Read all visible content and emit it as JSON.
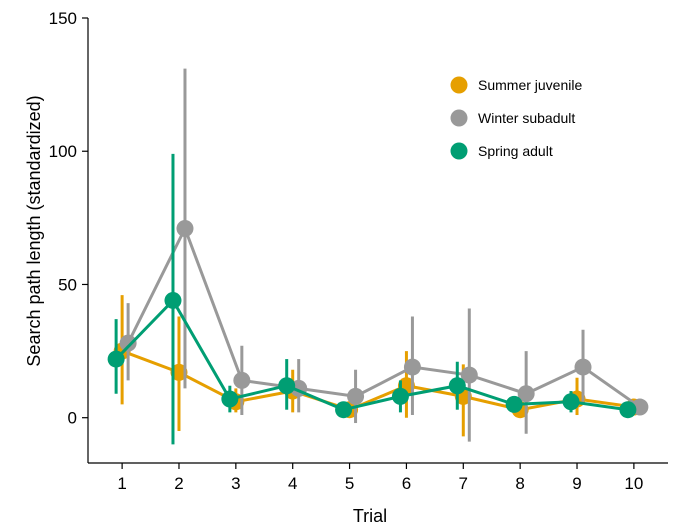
{
  "chart_data": {
    "type": "line",
    "title": "",
    "xlabel": "Trial",
    "ylabel": "Search path length (standardized)",
    "x": [
      1,
      2,
      3,
      4,
      5,
      6,
      7,
      8,
      9,
      10
    ],
    "xlim": [
      0.4,
      10.6
    ],
    "ylim": [
      -17,
      150
    ],
    "y_ticks": [
      0,
      50,
      100,
      150
    ],
    "legend_position": "top-right",
    "grid": false,
    "error_bars": true,
    "series": [
      {
        "name": "Summer juvenile",
        "color": "#E69F00",
        "values": [
          25,
          17,
          6,
          10,
          3,
          12,
          8,
          3,
          7,
          4
        ],
        "lower": [
          5,
          -5,
          2,
          2,
          1,
          0,
          -7,
          1,
          1,
          2
        ],
        "upper": [
          46,
          38,
          11,
          18,
          5,
          25,
          20,
          5,
          15,
          6
        ]
      },
      {
        "name": "Winter subadult",
        "color": "#999999",
        "values": [
          28,
          71,
          14,
          11,
          8,
          19,
          16,
          9,
          19,
          4
        ],
        "lower": [
          14,
          11,
          1,
          2,
          -2,
          1,
          -9,
          -6,
          6,
          2
        ],
        "upper": [
          43,
          131,
          27,
          22,
          18,
          38,
          41,
          25,
          33,
          6
        ]
      },
      {
        "name": "Spring adult",
        "color": "#009E73",
        "values": [
          22,
          44,
          7,
          12,
          3,
          8,
          12,
          5,
          6,
          3
        ],
        "lower": [
          9,
          -10,
          2,
          3,
          1,
          2,
          3,
          2,
          2,
          1
        ],
        "upper": [
          37,
          99,
          12,
          22,
          5,
          14,
          21,
          8,
          10,
          5
        ]
      }
    ]
  }
}
